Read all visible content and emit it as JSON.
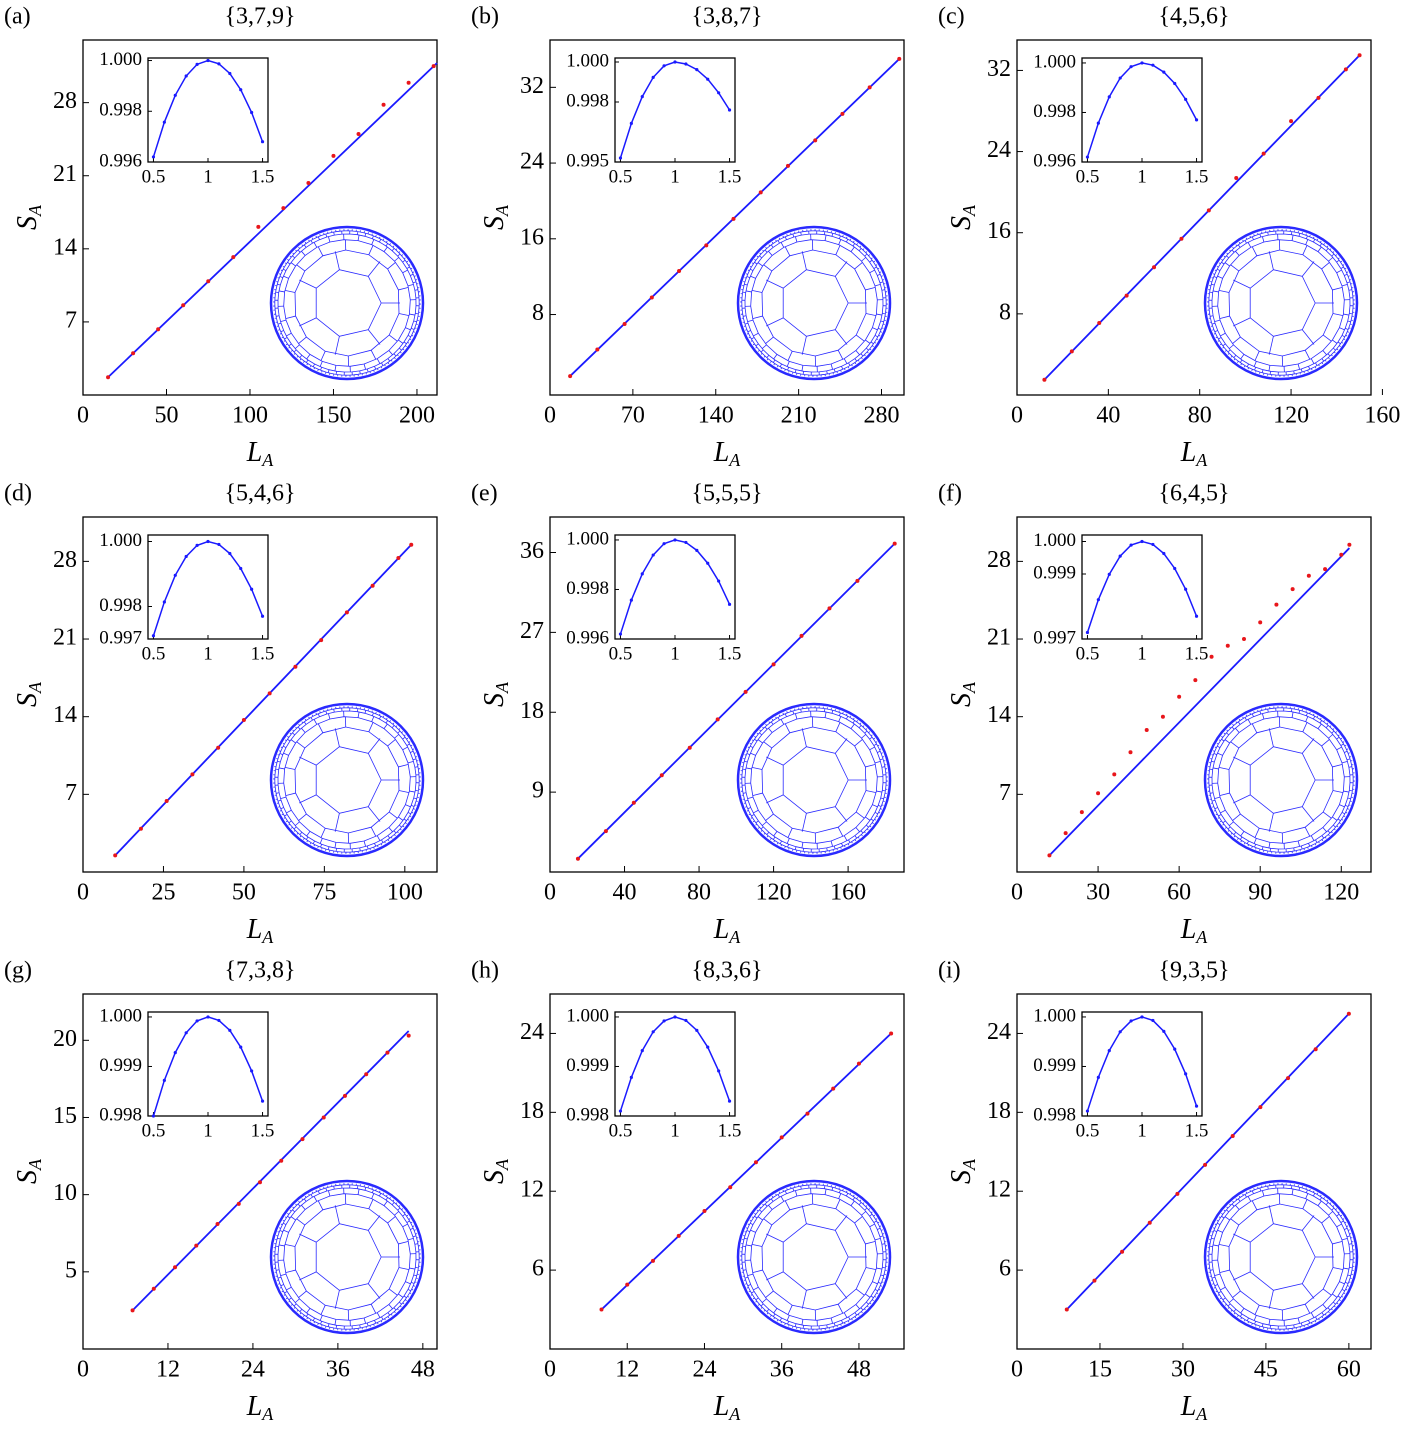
{
  "chart_data": [
    {
      "type": "scatter",
      "panel": "(a)",
      "title": "{3,7,9}",
      "x_label": "L",
      "x_label_sub": "A",
      "y_label": "S",
      "y_label_sub": "A",
      "xlim": [
        0,
        212
      ],
      "ylim": [
        0,
        34
      ],
      "xticks": [
        0,
        50,
        100,
        150,
        200
      ],
      "yticks": [
        7,
        14,
        21,
        28
      ],
      "points": {
        "color": "#e8161b",
        "x": [
          15,
          30,
          45,
          60,
          75,
          90,
          105,
          120,
          135,
          150,
          165,
          180,
          195,
          210
        ],
        "values": [
          1.7,
          4.0,
          6.3,
          8.6,
          10.9,
          13.2,
          16.1,
          17.9,
          20.3,
          22.9,
          25.0,
          27.8,
          29.9,
          31.5
        ]
      },
      "fit": {
        "color": "#1a1aff",
        "x": [
          15,
          212
        ],
        "values": [
          1.7,
          31.8
        ]
      },
      "inset": {
        "color": "#1a1aff",
        "xlim": [
          0.45,
          1.55
        ],
        "ylim": [
          0.996,
          1.0001
        ],
        "xticks": [
          0.5,
          1,
          1.5
        ],
        "yticks": [
          0.996,
          0.998,
          {
            "value": 1,
            "label": "1.000"
          }
        ],
        "x": [
          0.5,
          0.6,
          0.7,
          0.8,
          0.9,
          1,
          1.1,
          1.2,
          1.3,
          1.4,
          1.5
        ],
        "values": [
          0.9962,
          0.99757,
          0.99863,
          0.99939,
          0.99985,
          1.0,
          0.99987,
          0.99949,
          0.99885,
          0.99795,
          0.9968
        ]
      }
    },
    {
      "type": "scatter",
      "panel": "(b)",
      "title": "{3,8,7}",
      "x_label": "L",
      "x_label_sub": "A",
      "y_label": "S",
      "y_label_sub": "A",
      "xlim": [
        0,
        299
      ],
      "ylim": [
        -0.5,
        37
      ],
      "xticks": [
        0,
        70,
        140,
        210,
        280
      ],
      "yticks": [
        8,
        16,
        24,
        32
      ],
      "points": {
        "color": "#e8161b",
        "x": [
          17,
          40,
          63,
          86,
          109,
          132,
          155,
          178,
          201,
          224,
          247,
          270,
          295
        ],
        "values": [
          1.5,
          4.3,
          7.0,
          9.8,
          12.6,
          15.3,
          18.1,
          20.9,
          23.7,
          26.4,
          29.2,
          32.0,
          35.0
        ]
      },
      "fit": {
        "color": "#1a1aff",
        "x": [
          17,
          295
        ],
        "values": [
          1.5,
          35.0
        ]
      },
      "inset": {
        "color": "#1a1aff",
        "xlim": [
          0.45,
          1.55
        ],
        "ylim": [
          0.995,
          1.0002
        ],
        "xticks": [
          0.5,
          1,
          1.5
        ],
        "yticks": [
          0.995,
          0.998,
          {
            "value": 1,
            "label": "1.000"
          }
        ],
        "x": [
          0.5,
          0.6,
          0.7,
          0.8,
          0.9,
          1,
          1.1,
          1.2,
          1.3,
          1.4,
          1.5
        ],
        "values": [
          0.9952,
          0.99693,
          0.99827,
          0.99923,
          0.99981,
          1.0,
          0.9999,
          0.99962,
          0.99914,
          0.99846,
          0.9976
        ]
      }
    },
    {
      "type": "scatter",
      "panel": "(c)",
      "title": "{4,5,6}",
      "x_label": "L",
      "x_label_sub": "A",
      "y_label": "S",
      "y_label_sub": "A",
      "xlim": [
        0,
        155
      ],
      "ylim": [
        0,
        35
      ],
      "xticks": [
        0,
        40,
        80,
        120,
        160
      ],
      "yticks": [
        8,
        16,
        24,
        32
      ],
      "points": {
        "color": "#e8161b",
        "x": [
          12,
          24,
          36,
          48,
          60,
          72,
          84,
          96,
          108,
          120,
          132,
          144,
          150
        ],
        "values": [
          1.5,
          4.3,
          7.1,
          9.8,
          12.6,
          15.4,
          18.2,
          21.4,
          23.8,
          27.0,
          29.3,
          32.1,
          33.5
        ]
      },
      "fit": {
        "color": "#1a1aff",
        "x": [
          12,
          150
        ],
        "values": [
          1.5,
          33.5
        ]
      },
      "inset": {
        "color": "#1a1aff",
        "xlim": [
          0.45,
          1.55
        ],
        "ylim": [
          0.996,
          1.0002
        ],
        "xticks": [
          0.5,
          1,
          1.5
        ],
        "yticks": [
          0.996,
          0.998,
          {
            "value": 1,
            "label": "1.000"
          }
        ],
        "x": [
          0.5,
          0.6,
          0.7,
          0.8,
          0.9,
          1,
          1.1,
          1.2,
          1.3,
          1.4,
          1.5
        ],
        "values": [
          0.9962,
          0.99757,
          0.99863,
          0.99939,
          0.99985,
          1.0,
          0.99991,
          0.99963,
          0.99917,
          0.99853,
          0.9977
        ]
      }
    },
    {
      "type": "scatter",
      "panel": "(d)",
      "title": "{5,4,6}",
      "x_label": "L",
      "x_label_sub": "A",
      "y_label": "S",
      "y_label_sub": "A",
      "xlim": [
        0,
        110
      ],
      "ylim": [
        0,
        32
      ],
      "xticks": [
        0,
        25,
        50,
        75,
        100
      ],
      "yticks": [
        7,
        14,
        21,
        28
      ],
      "points": {
        "color": "#e8161b",
        "x": [
          10,
          18,
          26,
          34,
          42,
          50,
          58,
          66,
          74,
          82,
          90,
          98,
          102
        ],
        "values": [
          1.5,
          3.9,
          6.4,
          8.8,
          11.2,
          13.7,
          16.1,
          18.5,
          20.9,
          23.4,
          25.8,
          28.3,
          29.5
        ]
      },
      "fit": {
        "color": "#1a1aff",
        "x": [
          10,
          102
        ],
        "values": [
          1.5,
          29.5
        ]
      },
      "inset": {
        "color": "#1a1aff",
        "xlim": [
          0.45,
          1.55
        ],
        "ylim": [
          0.997,
          1.0002
        ],
        "xticks": [
          0.5,
          1,
          1.5
        ],
        "yticks": [
          0.997,
          0.998,
          {
            "value": 1,
            "label": "1.000"
          }
        ],
        "x": [
          0.5,
          0.6,
          0.7,
          0.8,
          0.9,
          1,
          1.1,
          1.2,
          1.3,
          1.4,
          1.5
        ],
        "values": [
          0.9971,
          0.99814,
          0.99896,
          0.99954,
          0.99988,
          1.0,
          0.99991,
          0.99963,
          0.99917,
          0.99853,
          0.9977
        ]
      }
    },
    {
      "type": "scatter",
      "panel": "(e)",
      "title": "{5,5,5}",
      "x_label": "L",
      "x_label_sub": "A",
      "y_label": "S",
      "y_label_sub": "A",
      "xlim": [
        0,
        190
      ],
      "ylim": [
        0,
        40
      ],
      "xticks": [
        0,
        40,
        80,
        120,
        160
      ],
      "yticks": [
        9,
        18,
        27,
        36
      ],
      "points": {
        "color": "#e8161b",
        "x": [
          15,
          30,
          45,
          60,
          75,
          90,
          105,
          120,
          135,
          150,
          165,
          185
        ],
        "values": [
          1.5,
          4.6,
          7.8,
          10.9,
          14.0,
          17.2,
          20.3,
          23.4,
          26.6,
          29.7,
          32.8,
          37.0
        ]
      },
      "fit": {
        "color": "#1a1aff",
        "x": [
          15,
          185
        ],
        "values": [
          1.5,
          37.0
        ]
      },
      "inset": {
        "color": "#1a1aff",
        "xlim": [
          0.45,
          1.55
        ],
        "ylim": [
          0.996,
          1.0002
        ],
        "xticks": [
          0.5,
          1,
          1.5
        ],
        "yticks": [
          0.996,
          0.998,
          {
            "value": 1,
            "label": "1.000"
          }
        ],
        "x": [
          0.5,
          0.6,
          0.7,
          0.8,
          0.9,
          1,
          1.1,
          1.2,
          1.3,
          1.4,
          1.5
        ],
        "values": [
          0.9962,
          0.99757,
          0.99863,
          0.99939,
          0.99985,
          1.0,
          0.9999,
          0.99958,
          0.99906,
          0.99834,
          0.9974
        ]
      }
    },
    {
      "type": "scatter",
      "panel": "(f)",
      "title": "{6,4,5}",
      "x_label": "L",
      "x_label_sub": "A",
      "y_label": "S",
      "y_label_sub": "A",
      "xlim": [
        0,
        131
      ],
      "ylim": [
        0,
        32
      ],
      "xticks": [
        0,
        30,
        60,
        90,
        120
      ],
      "yticks": [
        7,
        14,
        21,
        28
      ],
      "points": {
        "color": "#e8161b",
        "x": [
          12,
          18,
          24,
          30,
          36,
          42,
          48,
          54,
          60,
          66,
          72,
          78,
          84,
          90,
          96,
          102,
          108,
          114,
          120,
          123
        ],
        "values": [
          1.5,
          3.5,
          5.4,
          7.1,
          8.8,
          10.8,
          12.8,
          14.0,
          15.8,
          17.3,
          19.4,
          20.4,
          21.0,
          22.5,
          24.1,
          25.5,
          26.7,
          27.3,
          28.6,
          29.5
        ]
      },
      "fit": {
        "color": "#1a1aff",
        "x": [
          12,
          123
        ],
        "values": [
          1.5,
          29.2
        ]
      },
      "inset": {
        "color": "#1a1aff",
        "xlim": [
          0.45,
          1.55
        ],
        "ylim": [
          0.997,
          1.0002
        ],
        "xticks": [
          0.5,
          1,
          1.5
        ],
        "yticks": [
          0.997,
          0.999,
          {
            "value": 1,
            "label": "1.000"
          }
        ],
        "x": [
          0.5,
          0.6,
          0.7,
          0.8,
          0.9,
          1,
          1.1,
          1.2,
          1.3,
          1.4,
          1.5
        ],
        "values": [
          0.9972,
          0.99821,
          0.99899,
          0.99955,
          0.99989,
          1.0,
          0.99991,
          0.99963,
          0.99917,
          0.99853,
          0.9977
        ]
      }
    },
    {
      "type": "scatter",
      "panel": "(g)",
      "title": "{7,3,8}",
      "x_label": "L",
      "x_label_sub": "A",
      "y_label": "S",
      "y_label_sub": "A",
      "xlim": [
        0,
        50
      ],
      "ylim": [
        0,
        23
      ],
      "xticks": [
        0,
        12,
        24,
        36,
        48
      ],
      "yticks": [
        5,
        10,
        15,
        20
      ],
      "points": {
        "color": "#e8161b",
        "x": [
          7,
          10,
          13,
          16,
          19,
          22,
          25,
          28,
          31,
          34,
          37,
          40,
          43,
          46
        ],
        "values": [
          2.5,
          3.9,
          5.3,
          6.7,
          8.1,
          9.4,
          10.8,
          12.2,
          13.6,
          15.0,
          16.4,
          17.8,
          19.2,
          20.3
        ]
      },
      "fit": {
        "color": "#1a1aff",
        "x": [
          7,
          46
        ],
        "values": [
          2.5,
          20.6
        ]
      },
      "inset": {
        "color": "#1a1aff",
        "xlim": [
          0.45,
          1.55
        ],
        "ylim": [
          0.998,
          1.0001
        ],
        "xticks": [
          0.5,
          1,
          1.5
        ],
        "yticks": [
          0.998,
          0.999,
          {
            "value": 1,
            "label": "1.000"
          }
        ],
        "x": [
          0.5,
          0.6,
          0.7,
          0.8,
          0.9,
          1,
          1.1,
          1.2,
          1.3,
          1.4,
          1.5
        ],
        "values": [
          0.998,
          0.99872,
          0.99928,
          0.99968,
          0.99992,
          1.0,
          0.99993,
          0.99973,
          0.99939,
          0.99891,
          0.9983
        ]
      }
    },
    {
      "type": "scatter",
      "panel": "(h)",
      "title": "{8,3,6}",
      "x_label": "L",
      "x_label_sub": "A",
      "y_label": "S",
      "y_label_sub": "A",
      "xlim": [
        0,
        55
      ],
      "ylim": [
        0,
        27
      ],
      "xticks": [
        0,
        12,
        24,
        36,
        48
      ],
      "yticks": [
        6,
        12,
        18,
        24
      ],
      "points": {
        "color": "#e8161b",
        "x": [
          8,
          12,
          16,
          20,
          24,
          28,
          32,
          36,
          40,
          44,
          48,
          53
        ],
        "values": [
          3.0,
          4.9,
          6.7,
          8.6,
          10.5,
          12.3,
          14.2,
          16.1,
          17.9,
          19.8,
          21.7,
          24.0
        ]
      },
      "fit": {
        "color": "#1a1aff",
        "x": [
          8,
          53
        ],
        "values": [
          3.0,
          24.0
        ]
      },
      "inset": {
        "color": "#1a1aff",
        "xlim": [
          0.45,
          1.55
        ],
        "ylim": [
          0.998,
          1.0001
        ],
        "xticks": [
          0.5,
          1,
          1.5
        ],
        "yticks": [
          0.998,
          0.999,
          {
            "value": 1,
            "label": "1.000"
          }
        ],
        "x": [
          0.5,
          0.6,
          0.7,
          0.8,
          0.9,
          1,
          1.1,
          1.2,
          1.3,
          1.4,
          1.5
        ],
        "values": [
          0.9981,
          0.99878,
          0.99932,
          0.9997,
          0.99992,
          1.0,
          0.99993,
          0.99973,
          0.99939,
          0.99891,
          0.9983
        ]
      }
    },
    {
      "type": "scatter",
      "panel": "(i)",
      "title": "{9,3,5}",
      "x_label": "L",
      "x_label_sub": "A",
      "y_label": "S",
      "y_label_sub": "A",
      "xlim": [
        0,
        64
      ],
      "ylim": [
        0,
        27
      ],
      "xticks": [
        0,
        15,
        30,
        45,
        60
      ],
      "yticks": [
        6,
        12,
        18,
        24
      ],
      "points": {
        "color": "#e8161b",
        "x": [
          9,
          14,
          19,
          24,
          29,
          34,
          39,
          44,
          49,
          54,
          60
        ],
        "values": [
          3.0,
          5.2,
          7.4,
          9.6,
          11.8,
          14.0,
          16.2,
          18.4,
          20.6,
          22.8,
          25.5
        ]
      },
      "fit": {
        "color": "#1a1aff",
        "x": [
          9,
          60
        ],
        "values": [
          3.0,
          25.5
        ]
      },
      "inset": {
        "color": "#1a1aff",
        "xlim": [
          0.45,
          1.55
        ],
        "ylim": [
          0.998,
          1.0001
        ],
        "xticks": [
          0.5,
          1,
          1.5
        ],
        "yticks": [
          0.998,
          0.999,
          {
            "value": 1,
            "label": "1.000"
          }
        ],
        "x": [
          0.5,
          0.6,
          0.7,
          0.8,
          0.9,
          1,
          1.1,
          1.2,
          1.3,
          1.4,
          1.5
        ],
        "values": [
          0.9981,
          0.99878,
          0.99932,
          0.9997,
          0.99992,
          1.0,
          0.99993,
          0.99971,
          0.99935,
          0.99885,
          0.9982
        ]
      }
    }
  ]
}
